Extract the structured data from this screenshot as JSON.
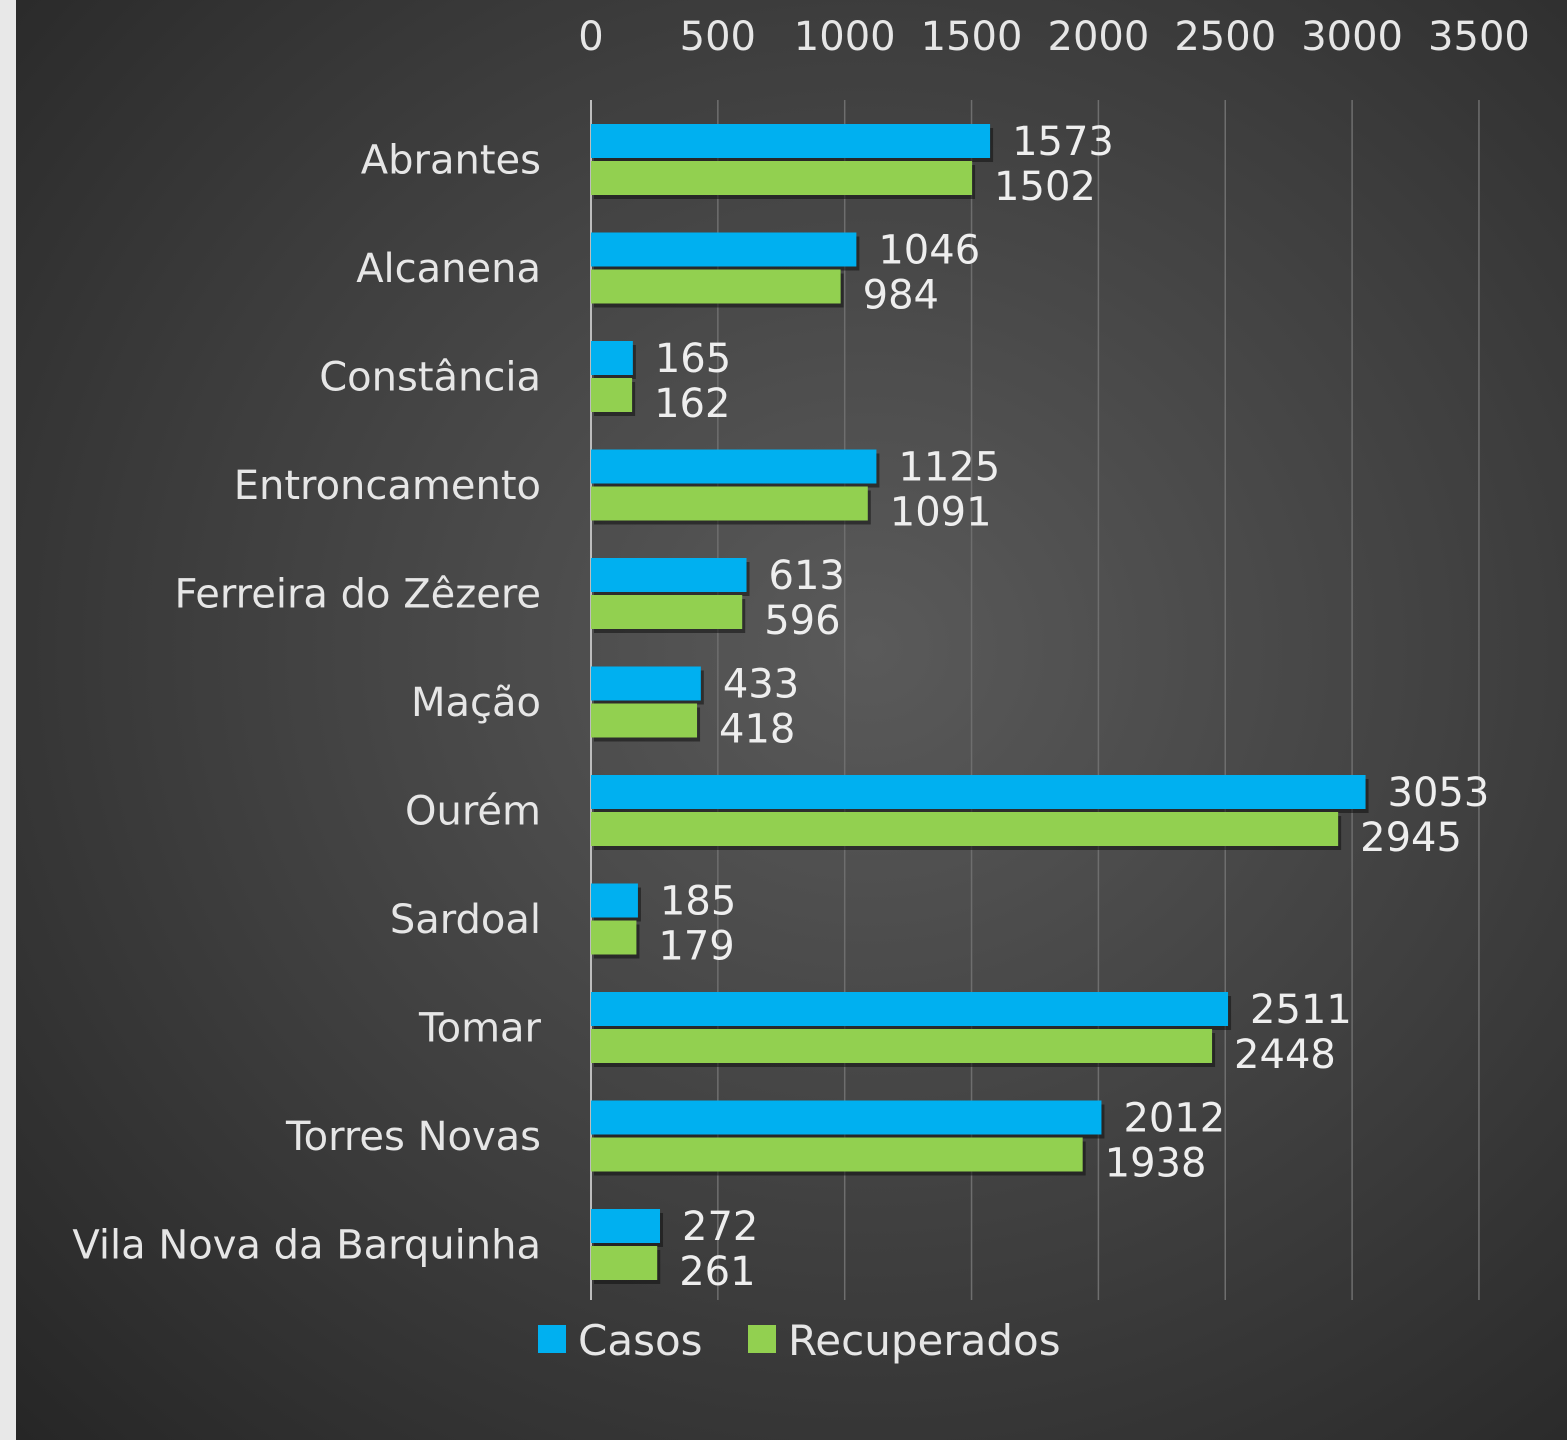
{
  "chart_data": {
    "type": "bar",
    "orientation": "horizontal",
    "categories": [
      "Abrantes",
      "Alcanena",
      "Constância",
      "Entroncamento",
      "Ferreira do Zêzere",
      "Mação",
      "Ourém",
      "Sardoal",
      "Tomar",
      "Torres Novas",
      "Vila Nova da Barquinha"
    ],
    "series": [
      {
        "name": "Casos",
        "color": "#00b0f0",
        "values": [
          1573,
          1046,
          165,
          1125,
          613,
          433,
          3053,
          185,
          2511,
          2012,
          272
        ]
      },
      {
        "name": "Recuperados",
        "color": "#92d050",
        "values": [
          1502,
          984,
          162,
          1091,
          596,
          418,
          2945,
          179,
          2448,
          1938,
          261
        ]
      }
    ],
    "xlim": [
      0,
      3500
    ],
    "x_ticks": [
      "0",
      "500",
      "1000",
      "1500",
      "2000",
      "2500",
      "3000",
      "3500"
    ],
    "x_axis_position": "top",
    "grid": true,
    "data_labels": true,
    "legend": {
      "placement": "bottom",
      "items": [
        "Casos",
        "Recuperados"
      ]
    }
  }
}
